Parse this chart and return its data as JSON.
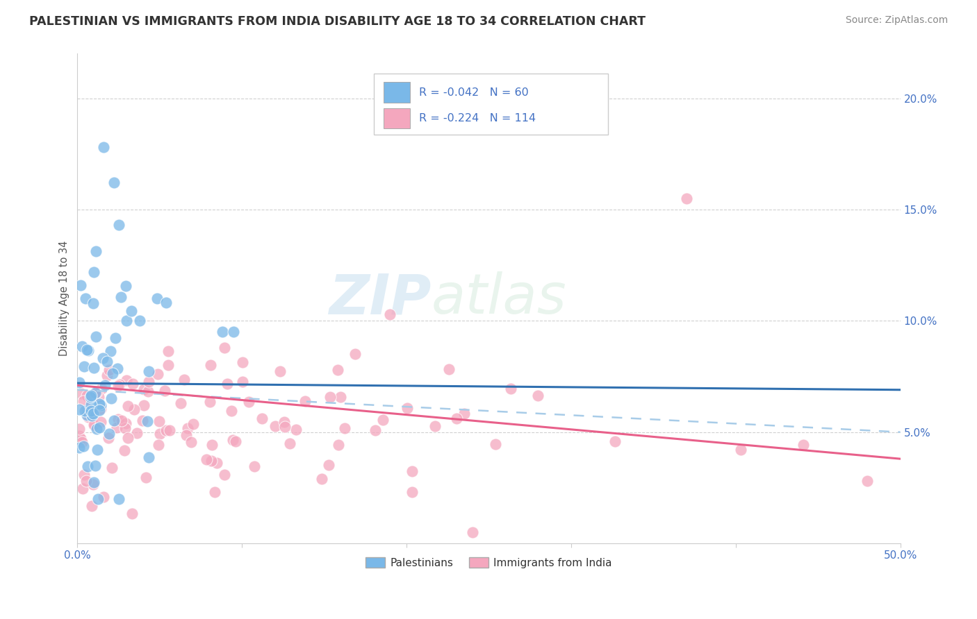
{
  "title": "PALESTINIAN VS IMMIGRANTS FROM INDIA DISABILITY AGE 18 TO 34 CORRELATION CHART",
  "source": "Source: ZipAtlas.com",
  "ylabel": "Disability Age 18 to 34",
  "xlim": [
    0.0,
    0.5
  ],
  "ylim": [
    0.0,
    0.22
  ],
  "yticks": [
    0.05,
    0.1,
    0.15,
    0.2
  ],
  "yticklabels": [
    "5.0%",
    "10.0%",
    "15.0%",
    "20.0%"
  ],
  "blue_color": "#7ab8e8",
  "pink_color": "#f4a7be",
  "blue_line_color": "#3070b0",
  "pink_line_color": "#e8608a",
  "blue_dashed_color": "#a8cce8",
  "r_blue": -0.042,
  "n_blue": 60,
  "r_pink": -0.224,
  "n_pink": 114,
  "legend_labels": [
    "Palestinians",
    "Immigrants from India"
  ],
  "watermark_zip": "ZIP",
  "watermark_atlas": "atlas",
  "background_color": "#ffffff",
  "grid_color": "#d0d0d0",
  "title_color": "#333333",
  "tick_color": "#4472c4",
  "source_color": "#888888",
  "ylabel_color": "#555555",
  "title_fontsize": 12.5,
  "axis_fontsize": 10.5,
  "tick_fontsize": 11,
  "legend_fontsize": 11,
  "source_fontsize": 10,
  "blue_trend_y0": 0.072,
  "blue_trend_y1": 0.069,
  "pink_trend_y0": 0.071,
  "pink_trend_y1": 0.038,
  "dashed_trend_y0": 0.069,
  "dashed_trend_y1": 0.05
}
